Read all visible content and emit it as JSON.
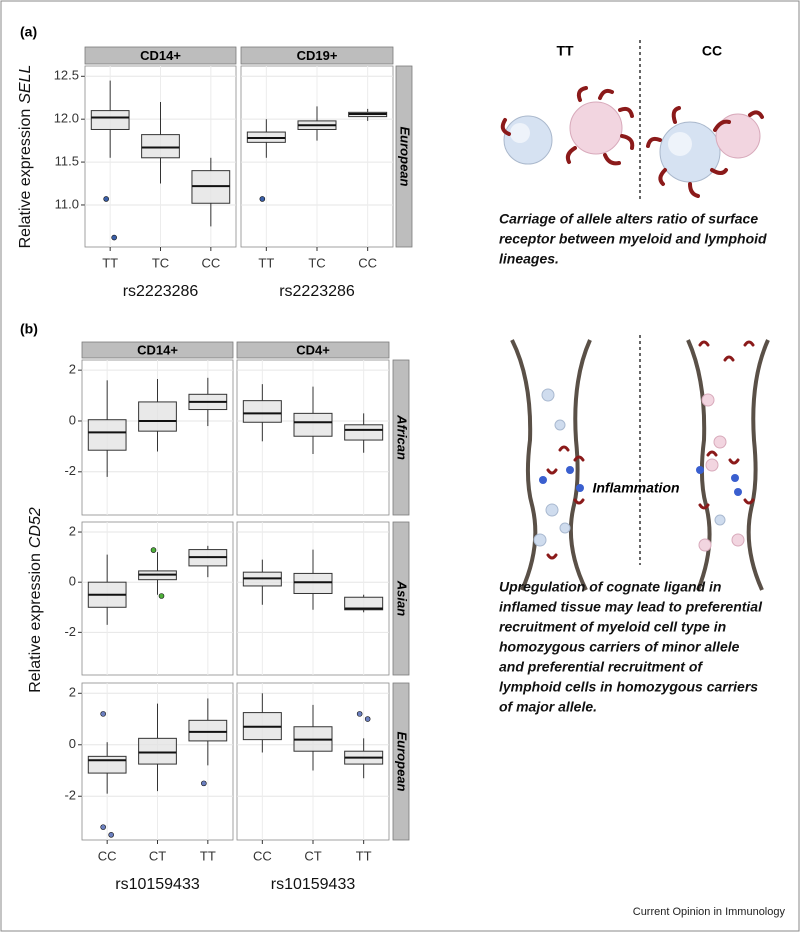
{
  "chart_data": [
    {
      "type": "box",
      "panel_label": "(a)",
      "facets": [
        "CD14+",
        "CD19+"
      ],
      "rows": [
        "European"
      ],
      "categories": [
        "TT",
        "TC",
        "CC"
      ],
      "x_label": "rs2223286",
      "y_label": "Relative expression",
      "y_label_gene": "SELL",
      "ylim": [
        10.51,
        12.62
      ],
      "yticks": [
        {
          "value": 11,
          "label": "11.0"
        },
        11.5,
        {
          "value": 12,
          "label": "12.0"
        },
        12.5
      ],
      "color": "#3a5fa8",
      "grid": true,
      "boxes": [
        [
          [
            {
              "whisker_low": 11.55,
              "q1": 11.88,
              "median": 12.02,
              "q3": 12.1,
              "whisker_high": 12.45,
              "outliers": [
                11.07,
                10.62
              ]
            },
            {
              "whisker_low": 11.25,
              "q1": 11.55,
              "median": 11.67,
              "q3": 11.82,
              "whisker_high": 12.2
            },
            {
              "whisker_low": 10.75,
              "q1": 11.02,
              "median": 11.22,
              "q3": 11.4,
              "whisker_high": 11.55
            }
          ],
          [
            {
              "whisker_low": 11.55,
              "q1": 11.73,
              "median": 11.78,
              "q3": 11.85,
              "whisker_high": 12.0,
              "outliers": [
                11.07
              ]
            },
            {
              "whisker_low": 11.75,
              "q1": 11.88,
              "median": 11.93,
              "q3": 11.98,
              "whisker_high": 12.15
            },
            {
              "whisker_low": 11.98,
              "q1": 12.03,
              "median": 12.06,
              "q3": 12.08,
              "whisker_high": 12.12
            }
          ]
        ]
      ]
    },
    {
      "type": "box",
      "panel_label": "(b)",
      "facets": [
        "CD14+",
        "CD4+"
      ],
      "rows": [
        "African",
        "Asian",
        "European"
      ],
      "categories": [
        "CC",
        "CT",
        "TT"
      ],
      "x_label": "rs10159433",
      "y_label": "Relative expression",
      "y_label_gene": "CD52",
      "ylim": [
        -3.7,
        2.4
      ],
      "yticks": [
        -2,
        0,
        2
      ],
      "row_colors": [
        "#d9675e",
        "#4daf3a",
        "#6b7fbf"
      ],
      "grid": true,
      "boxes": [
        [
          [
            {
              "whisker_low": -2.2,
              "q1": -1.15,
              "median": -0.45,
              "q3": 0.05,
              "whisker_high": 1.6
            },
            {
              "whisker_low": -1.2,
              "q1": -0.4,
              "median": 0,
              "q3": 0.75,
              "whisker_high": 1.65
            },
            {
              "whisker_low": -0.2,
              "q1": 0.45,
              "median": 0.75,
              "q3": 1.05,
              "whisker_high": 1.7
            }
          ],
          [
            {
              "whisker_low": -0.8,
              "q1": -0.05,
              "median": 0.3,
              "q3": 0.8,
              "whisker_high": 1.45
            },
            {
              "whisker_low": -1.3,
              "q1": -0.6,
              "median": -0.05,
              "q3": 0.3,
              "whisker_high": 1.35
            },
            {
              "whisker_low": -1.25,
              "q1": -0.75,
              "median": -0.35,
              "q3": -0.15,
              "whisker_high": 0.3
            }
          ]
        ],
        [
          [
            {
              "whisker_low": -1.7,
              "q1": -1.0,
              "median": -0.5,
              "q3": 0,
              "whisker_high": 1.1
            },
            {
              "whisker_low": -0.5,
              "q1": 0.1,
              "median": 0.3,
              "q3": 0.45,
              "whisker_high": 1.2,
              "outliers": [
                1.28,
                -0.55
              ]
            },
            {
              "whisker_low": 0.2,
              "q1": 0.65,
              "median": 1.0,
              "q3": 1.3,
              "whisker_high": 1.45
            }
          ],
          [
            {
              "whisker_low": -0.9,
              "q1": -0.15,
              "median": 0.15,
              "q3": 0.4,
              "whisker_high": 0.9
            },
            {
              "whisker_low": -1.1,
              "q1": -0.45,
              "median": 0,
              "q3": 0.35,
              "whisker_high": 1.3
            },
            {
              "whisker_low": -1.2,
              "q1": -1.1,
              "median": -1.05,
              "q3": -0.6,
              "whisker_high": -0.5
            }
          ]
        ],
        [
          [
            {
              "whisker_low": -1.9,
              "q1": -1.1,
              "median": -0.6,
              "q3": -0.45,
              "whisker_high": 0.1,
              "outliers": [
                -3.2,
                -3.5,
                1.2
              ]
            },
            {
              "whisker_low": -1.8,
              "q1": -0.75,
              "median": -0.3,
              "q3": 0.25,
              "whisker_high": 1.6
            },
            {
              "whisker_low": -0.8,
              "q1": 0.15,
              "median": 0.5,
              "q3": 0.95,
              "whisker_high": 1.8,
              "outliers": [
                -1.5
              ]
            }
          ],
          [
            {
              "whisker_low": -0.3,
              "q1": 0.2,
              "median": 0.7,
              "q3": 1.25,
              "whisker_high": 2.0
            },
            {
              "whisker_low": -1.0,
              "q1": -0.25,
              "median": 0.2,
              "q3": 0.7,
              "whisker_high": 1.55
            },
            {
              "whisker_low": -1.3,
              "q1": -0.75,
              "median": -0.5,
              "q3": -0.25,
              "whisker_high": 0.25,
              "outliers": [
                1.2,
                1.0
              ]
            }
          ]
        ]
      ]
    }
  ],
  "illustration_a": {
    "left_label": "TT",
    "right_label": "CC",
    "caption": [
      "Carriage of allele alters ratio of surface",
      "receptor between myeloid and lymphoid",
      "lineages."
    ]
  },
  "illustration_b": {
    "center_label": "Inflammation",
    "caption": [
      "Upregulation of cognate ligand in",
      "inflamed tissue may lead to preferential",
      "recruitment of myeloid cell type in",
      "homozygous carriers of minor allele",
      "and preferential recruitment of",
      "lymphoid cells in homozygous carriers",
      "of major allele."
    ]
  },
  "footer": "Current Opinion in Immunology"
}
